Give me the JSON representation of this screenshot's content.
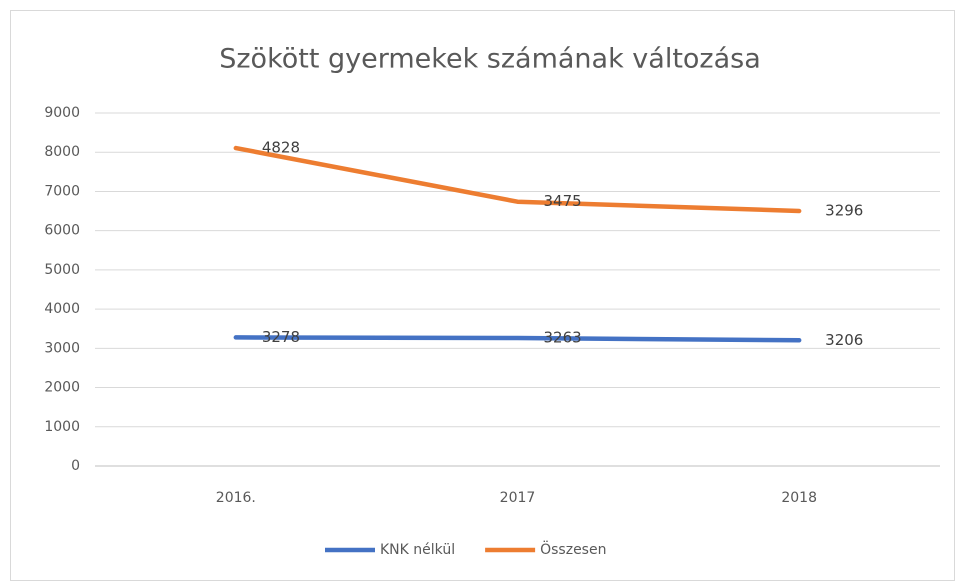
{
  "chart_data": {
    "type": "line",
    "title": "Szökött gyermekek  számának változása",
    "categories": [
      "2016.",
      "2017",
      "2018"
    ],
    "series": [
      {
        "name": "KNK nélkül",
        "color": "#4472c4",
        "values": [
          3278,
          3263,
          3206
        ]
      },
      {
        "name": "Összesen",
        "color": "#ed7d31",
        "values": [
          4828,
          3475,
          3296
        ]
      }
    ],
    "stacked": true,
    "ylim": [
      0,
      9000
    ],
    "yticks": [
      0,
      1000,
      2000,
      3000,
      4000,
      5000,
      6000,
      7000,
      8000,
      9000
    ],
    "grid": true,
    "legend": "bottom",
    "data_labels": true
  }
}
